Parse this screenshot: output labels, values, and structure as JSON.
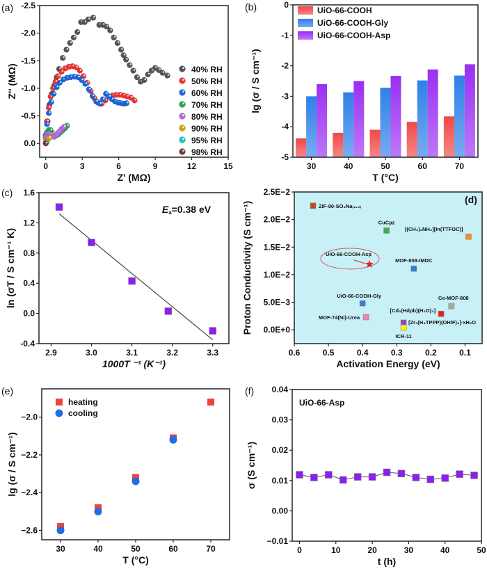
{
  "chart_data": [
    {
      "id": "a",
      "panel_label": "(a)",
      "type": "scatter",
      "title": "",
      "xlabel": "Z' (MΩ)",
      "ylabel": "Z'' (MΩ)",
      "xlim": [
        -0.5,
        15
      ],
      "ylim": [
        0.25,
        -2.5
      ],
      "xticks": [
        0,
        3,
        6,
        9,
        12,
        15
      ],
      "yticks": [
        0.0,
        -0.5,
        -1.0,
        -1.5,
        -2.0,
        -2.5
      ],
      "ytick_labels": [
        "0.0",
        "-0.5",
        "-1.0",
        "-1.5",
        "-2.0",
        "-2.5"
      ],
      "legend_position": "right",
      "series": [
        {
          "name": "40% RH",
          "color": "#555555",
          "x": [
            0.0,
            0.15,
            0.3,
            0.5,
            0.7,
            0.9,
            1.1,
            1.4,
            1.7,
            2.0,
            2.3,
            2.6,
            2.9,
            3.2,
            3.5,
            3.9,
            4.4,
            4.7,
            5.0,
            5.3,
            5.6,
            5.9,
            6.2,
            6.4,
            6.6,
            6.9,
            7.2,
            7.5,
            7.8,
            8.1,
            8.4,
            8.7,
            9.0,
            9.3,
            9.6,
            10.0
          ],
          "y": [
            -0.1,
            -0.4,
            -0.7,
            -0.9,
            -1.05,
            -1.2,
            -1.35,
            -1.55,
            -1.7,
            -1.82,
            -1.92,
            -2.02,
            -2.2,
            -2.2,
            -2.25,
            -2.28,
            -2.15,
            -2.15,
            -2.12,
            -2.05,
            -1.92,
            -1.82,
            -1.7,
            -1.6,
            -1.52,
            -1.42,
            -1.32,
            -1.2,
            -1.12,
            -1.15,
            -1.25,
            -1.32,
            -1.37,
            -1.33,
            -1.28,
            -1.23
          ]
        },
        {
          "name": "50% RH",
          "color": "#ee3333",
          "x": [
            0.0,
            0.1,
            0.25,
            0.4,
            0.6,
            0.8,
            1.0,
            1.3,
            1.6,
            1.9,
            2.2,
            2.5,
            2.8,
            3.1,
            3.4,
            3.7,
            4.0,
            4.3,
            4.6,
            4.9,
            5.2,
            5.5,
            5.8,
            6.1,
            6.4,
            6.7,
            7.0,
            7.3
          ],
          "y": [
            -0.15,
            -0.4,
            -0.65,
            -0.85,
            -1.0,
            -1.12,
            -1.22,
            -1.3,
            -1.36,
            -1.39,
            -1.4,
            -1.38,
            -1.32,
            -1.22,
            -1.1,
            -0.95,
            -0.82,
            -0.74,
            -0.72,
            -0.78,
            -0.85,
            -0.87,
            -0.88,
            -0.88,
            -0.87,
            -0.85,
            -0.83,
            -0.78
          ]
        },
        {
          "name": "60% RH",
          "color": "#1a66dd",
          "x": [
            0.0,
            0.1,
            0.25,
            0.45,
            0.65,
            0.9,
            1.15,
            1.45,
            1.75,
            2.05,
            2.35,
            2.65,
            2.95,
            3.25,
            3.55,
            3.85,
            4.15,
            4.45,
            4.7,
            4.95,
            5.2,
            5.45,
            5.7,
            5.95,
            6.2,
            6.45,
            6.65
          ],
          "y": [
            -0.15,
            -0.35,
            -0.55,
            -0.75,
            -0.9,
            -1.02,
            -1.1,
            -1.16,
            -1.19,
            -1.2,
            -1.21,
            -1.2,
            -1.15,
            -1.08,
            -0.98,
            -0.86,
            -0.76,
            -0.72,
            -0.8,
            -0.9,
            -0.85,
            -0.8,
            -0.76,
            -0.74,
            -0.73,
            -0.72,
            -0.73
          ]
        },
        {
          "name": "70% RH",
          "color": "#2aa84a",
          "x": [
            0.0,
            0.1,
            0.25,
            0.4,
            0.6,
            0.8,
            1.0,
            1.2,
            1.4,
            1.6,
            1.75
          ],
          "y": [
            -0.12,
            -0.2,
            -0.24,
            -0.24,
            -0.18,
            -0.14,
            -0.16,
            -0.2,
            -0.24,
            -0.28,
            -0.32
          ]
        },
        {
          "name": "80% RH",
          "color": "#b66ae0",
          "x": [
            0.0,
            0.1,
            0.25,
            0.4,
            0.55,
            0.7,
            0.9,
            1.1,
            1.3,
            1.5
          ],
          "y": [
            -0.1,
            -0.15,
            -0.18,
            -0.16,
            -0.13,
            -0.12,
            -0.16,
            -0.21,
            -0.26,
            -0.3
          ]
        },
        {
          "name": "90% RH",
          "color": "#d4a10a",
          "x": [
            0.0,
            0.1,
            0.2,
            0.3
          ],
          "y": [
            -0.02,
            -0.05,
            -0.08,
            -0.1
          ]
        },
        {
          "name": "95% RH",
          "color": "#19c7c0",
          "x": [
            0.0,
            0.05
          ],
          "y": [
            -0.01,
            -0.02
          ]
        },
        {
          "name": "98% RH",
          "color": "#7a3b38",
          "x": [
            0.0
          ],
          "y": [
            0.0
          ]
        }
      ]
    },
    {
      "id": "b",
      "panel_label": "(b)",
      "type": "bar",
      "title": "",
      "xlabel": "T (°C)",
      "ylabel": "lg (σ / S cm⁻¹)",
      "categories": [
        "30",
        "40",
        "50",
        "60",
        "70"
      ],
      "ylim": [
        -5,
        0
      ],
      "yticks": [
        0,
        -1,
        -2,
        -3,
        -4,
        -5
      ],
      "legend_position": "top-left",
      "series": [
        {
          "name": "UiO-66-COOH",
          "color": "#f04848",
          "values": [
            -4.38,
            -4.2,
            -4.1,
            -3.84,
            -3.66
          ]
        },
        {
          "name": "UiO-66-COOH-Gly",
          "color": "#2f7fe8",
          "values": [
            -3.0,
            -2.87,
            -2.72,
            -2.48,
            -2.32
          ]
        },
        {
          "name": "UiO-66-COOH-Asp",
          "color": "#9a2ff2",
          "values": [
            -2.6,
            -2.5,
            -2.33,
            -2.12,
            -1.95
          ]
        }
      ]
    },
    {
      "id": "c",
      "panel_label": "(c)",
      "type": "scatter",
      "title": "",
      "xlabel": "1000T ⁻¹ (K⁻¹)",
      "ylabel": "ln (σT / S cm⁻¹ K)",
      "xlim": [
        2.87,
        3.34
      ],
      "ylim": [
        -0.4,
        1.6
      ],
      "xticks": [
        2.9,
        3.0,
        3.1,
        3.2,
        3.3
      ],
      "yticks": [
        -0.4,
        0.0,
        0.4,
        0.8,
        1.2,
        1.6
      ],
      "annotation": "Ea=0.38 eV",
      "annotation_main": "E",
      "annotation_sub": "a",
      "annotation_rest": "=0.38 eV",
      "series": [
        {
          "name": "data",
          "color": "#8a1ff0",
          "x": [
            2.92,
            3.0,
            3.1,
            3.19,
            3.3
          ],
          "y": [
            1.41,
            0.94,
            0.43,
            0.03,
            -0.23
          ]
        }
      ],
      "fit_line": {
        "x": [
          2.92,
          3.3
        ],
        "y": [
          1.32,
          -0.35
        ]
      }
    },
    {
      "id": "d",
      "panel_label": "(d)",
      "type": "scatter",
      "title": "",
      "xlabel": "Activation Energy (eV)",
      "ylabel": "Proton Conductivity (S cm⁻¹)",
      "xlim": [
        0.6,
        0.05
      ],
      "ylim": [
        -0.0025,
        0.025
      ],
      "xticks": [
        0.6,
        0.5,
        0.4,
        0.3,
        0.2,
        0.1
      ],
      "xtick_labels": [
        "0.6",
        "0.5",
        "0.4",
        "0.3",
        "0.2",
        "0.1"
      ],
      "yticks": [
        0.0,
        0.005,
        0.01,
        0.015,
        0.02,
        0.025
      ],
      "ytick_labels": [
        "0.0E+0",
        "5.0E−3",
        "1.0E−2",
        "1.5E−2",
        "2.0E−2",
        "2.5E−2"
      ],
      "background": "#c8f0f7",
      "highlight": {
        "label": "UiO-66-COOH-Asp",
        "x": 0.38,
        "y": 0.0119,
        "color": "#e02020",
        "marker": "star"
      },
      "points": [
        {
          "label": "ZIF-90-SO₃Na₍₂.₃₎",
          "x": 0.545,
          "y": 0.0225,
          "color": "#b5521f"
        },
        {
          "label": "CuCpz",
          "x": 0.33,
          "y": 0.018,
          "color": "#3bb04a"
        },
        {
          "label": "[(CH₃)₂NH₂][In(TTFOC)]",
          "x": 0.09,
          "y": 0.0169,
          "color": "#ff8a1a"
        },
        {
          "label": "MOF-808-IMDC",
          "x": 0.25,
          "y": 0.0111,
          "color": "#2f7fd8"
        },
        {
          "label": "UiO-66-COOH-Gly",
          "x": 0.4,
          "y": 0.0048,
          "color": "#2f7fd8"
        },
        {
          "label": "Ce-MOF-808",
          "x": 0.14,
          "y": 0.0043,
          "color": "#a8a8a8"
        },
        {
          "label": "[Cd₂(Hdpb)(H₂O)₃]",
          "x": 0.17,
          "y": 0.0029,
          "color": "#e61e1e"
        },
        {
          "label": "MOF-74(Ni)-Urea",
          "x": 0.39,
          "y": 0.0023,
          "color": "#f27fb8"
        },
        {
          "label": "[Zr₂(H₄TPPP)(OH/F)₃]·xH₂O",
          "x": 0.28,
          "y": 0.0013,
          "color": "#9b3fbf"
        },
        {
          "label": "ICR-11",
          "x": 0.28,
          "y": 0.0004,
          "color": "#ffee22"
        }
      ]
    },
    {
      "id": "e",
      "panel_label": "(e)",
      "type": "scatter",
      "title": "",
      "xlabel": "T (°C)",
      "ylabel": "lg (σ / S cm⁻¹)",
      "xlim": [
        25,
        75
      ],
      "ylim": [
        -2.65,
        -1.85
      ],
      "xticks": [
        30,
        40,
        50,
        60,
        70
      ],
      "yticks": [
        -2.6,
        -2.4,
        -2.2,
        -2.0
      ],
      "ytick_labels": [
        "−2.6",
        "−2.4",
        "−2.2",
        "−2.0"
      ],
      "legend_position": "top-left",
      "series": [
        {
          "name": "heating",
          "color": "#f04040",
          "marker": "square",
          "x": [
            30,
            40,
            50,
            60,
            70
          ],
          "y": [
            -2.58,
            -2.48,
            -2.32,
            -2.11,
            -1.92
          ]
        },
        {
          "name": "cooling",
          "color": "#1f6fe0",
          "marker": "circle",
          "x": [
            30,
            40,
            50,
            60
          ],
          "y": [
            -2.6,
            -2.5,
            -2.34,
            -2.12
          ]
        }
      ]
    },
    {
      "id": "f",
      "panel_label": "(f)",
      "type": "line",
      "title": "",
      "xlabel": "t (h)",
      "ylabel": "σ (S cm⁻¹)",
      "xlim": [
        -2,
        50
      ],
      "ylim": [
        -0.01,
        0.04
      ],
      "xticks": [
        0,
        10,
        20,
        30,
        40,
        50
      ],
      "yticks": [
        -0.01,
        0.0,
        0.01,
        0.02,
        0.03,
        0.04
      ],
      "ytick_labels": [
        "−0.01",
        "0.00",
        "0.01",
        "0.02",
        "0.03",
        "0.04"
      ],
      "annotation": "UiO-66-Asp",
      "series": [
        {
          "name": "UiO-66-Asp",
          "color": "#8a1ff0",
          "x": [
            0,
            4,
            8,
            12,
            16,
            20,
            24,
            28,
            32,
            36,
            40,
            44,
            48
          ],
          "y": [
            0.0119,
            0.011,
            0.0119,
            0.0102,
            0.0112,
            0.0112,
            0.0127,
            0.0123,
            0.011,
            0.0104,
            0.0108,
            0.0121,
            0.0117
          ]
        }
      ]
    }
  ]
}
